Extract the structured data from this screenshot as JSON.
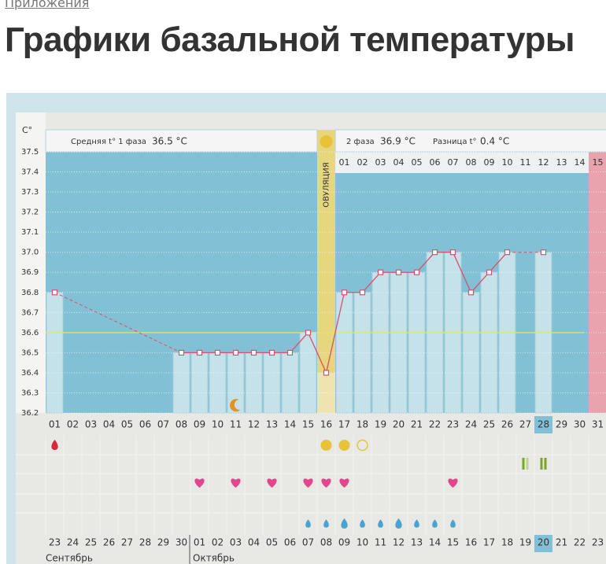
{
  "breadcrumb": "Приложения",
  "title": "Графики базальной температуры",
  "chart_data": {
    "type": "line",
    "y_label": "C°",
    "header": {
      "phase1_label": "Средняя t° 1 фаза",
      "phase1_value": "36.5 °C",
      "phase2_label": "2 фаза",
      "phase2_value": "36.9 °C",
      "diff_label": "Разница t°",
      "diff_value": "0.4 °C"
    },
    "ovulation_label": "ОВУЛЯЦИЯ",
    "categories": [
      "01",
      "02",
      "03",
      "04",
      "05",
      "06",
      "07",
      "08",
      "09",
      "10",
      "11",
      "12",
      "13",
      "14",
      "15",
      "16",
      "17",
      "18",
      "19",
      "20",
      "21",
      "22",
      "23",
      "24",
      "25",
      "26",
      "27",
      "28",
      "29",
      "30",
      "31"
    ],
    "phase2_days": [
      "01",
      "02",
      "03",
      "04",
      "05",
      "06",
      "07",
      "08",
      "09",
      "10",
      "11",
      "12",
      "13",
      "14",
      "15"
    ],
    "values": [
      36.8,
      null,
      null,
      null,
      null,
      null,
      null,
      36.5,
      36.5,
      36.5,
      36.5,
      36.5,
      36.5,
      36.5,
      36.6,
      36.4,
      36.8,
      36.8,
      36.9,
      36.9,
      36.9,
      37.0,
      37.0,
      36.8,
      36.9,
      37.0,
      null,
      37.0,
      null,
      null,
      null
    ],
    "color": "#d9506e",
    "coverline": 36.6,
    "ylim": [
      36.2,
      37.5
    ],
    "yticks": [
      36.2,
      36.3,
      36.4,
      36.5,
      36.6,
      36.7,
      36.8,
      36.9,
      {
        "value": 37,
        "label": "37.0"
      },
      37.1,
      37.2,
      37.3,
      37.4,
      37.5
    ],
    "calendar": [
      {
        "label": "23",
        "weekend": true
      },
      {
        "label": "24",
        "weekend": true
      },
      {
        "label": "25",
        "weekend": false
      },
      {
        "label": "26",
        "weekend": false
      },
      {
        "label": "27",
        "weekend": false
      },
      {
        "label": "28",
        "weekend": false
      },
      {
        "label": "29",
        "weekend": false
      },
      {
        "label": "30",
        "weekend": true
      },
      {
        "label": "01",
        "weekend": true
      },
      {
        "label": "02",
        "weekend": false
      },
      {
        "label": "03",
        "weekend": false
      },
      {
        "label": "04",
        "weekend": false
      },
      {
        "label": "05",
        "weekend": false
      },
      {
        "label": "06",
        "weekend": false
      },
      {
        "label": "07",
        "weekend": true
      },
      {
        "label": "08",
        "weekend": true
      },
      {
        "label": "09",
        "weekend": false
      },
      {
        "label": "10",
        "weekend": false
      },
      {
        "label": "11",
        "weekend": false
      },
      {
        "label": "12",
        "weekend": false
      },
      {
        "label": "13",
        "weekend": false
      },
      {
        "label": "14",
        "weekend": true
      },
      {
        "label": "15",
        "weekend": true
      },
      {
        "label": "16",
        "weekend": false
      },
      {
        "label": "17",
        "weekend": false
      },
      {
        "label": "18",
        "weekend": false
      },
      {
        "label": "19",
        "weekend": false
      },
      {
        "label": "20",
        "weekend": true
      },
      {
        "label": "21",
        "weekend": true
      },
      {
        "label": "22",
        "weekend": true
      },
      {
        "label": "23",
        "weekend": false
      }
    ],
    "months": [
      "Сентябрь",
      "Октябрь"
    ]
  }
}
